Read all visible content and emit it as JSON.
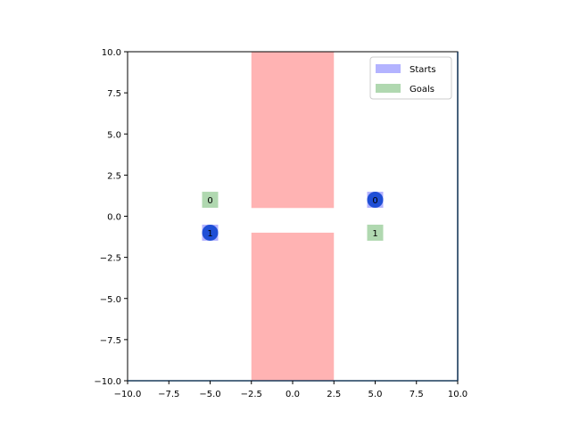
{
  "chart_data": {
    "type": "scatter",
    "xlim": [
      -10,
      10
    ],
    "ylim": [
      -10,
      10
    ],
    "x_ticks": [
      -10,
      -7.5,
      -5,
      -2.5,
      0,
      2.5,
      5,
      7.5,
      10
    ],
    "y_ticks": [
      -10,
      -7.5,
      -5,
      -2.5,
      0,
      2.5,
      5,
      7.5,
      10
    ],
    "x_tick_labels": [
      "−10.0",
      "−7.5",
      "−5.0",
      "−2.5",
      "0.0",
      "2.5",
      "5.0",
      "7.5",
      "10.0"
    ],
    "y_tick_labels": [
      "−10.0",
      "−7.5",
      "−5.0",
      "−2.5",
      "0.0",
      "2.5",
      "5.0",
      "7.5",
      "10.0"
    ],
    "obstacles": [
      {
        "x": [
          -2.5,
          2.5
        ],
        "y": [
          0.5,
          10
        ]
      },
      {
        "x": [
          -2.5,
          2.5
        ],
        "y": [
          -10,
          -1
        ]
      }
    ],
    "starts": [
      {
        "id": "0",
        "x": 5,
        "y": 1
      },
      {
        "id": "1",
        "x": -5,
        "y": -1
      }
    ],
    "goals": [
      {
        "id": "0",
        "x": -5,
        "y": 1
      },
      {
        "id": "1",
        "x": 5,
        "y": -1
      }
    ],
    "agents": [
      {
        "id": "0",
        "x": 5,
        "y": 1
      },
      {
        "id": "1",
        "x": -5,
        "y": -1
      }
    ],
    "legend": {
      "placement": "top-right",
      "entries": [
        {
          "label": "Starts",
          "color": "#b3b3ff"
        },
        {
          "label": "Goals",
          "color": "#b0d8b0"
        }
      ]
    },
    "colors": {
      "obstacle": "#ffb3b3",
      "start": "#b3b3ff",
      "goal": "#b0d8b0",
      "agent": "#1f4fd6",
      "frame": "#1a3b5c"
    }
  }
}
